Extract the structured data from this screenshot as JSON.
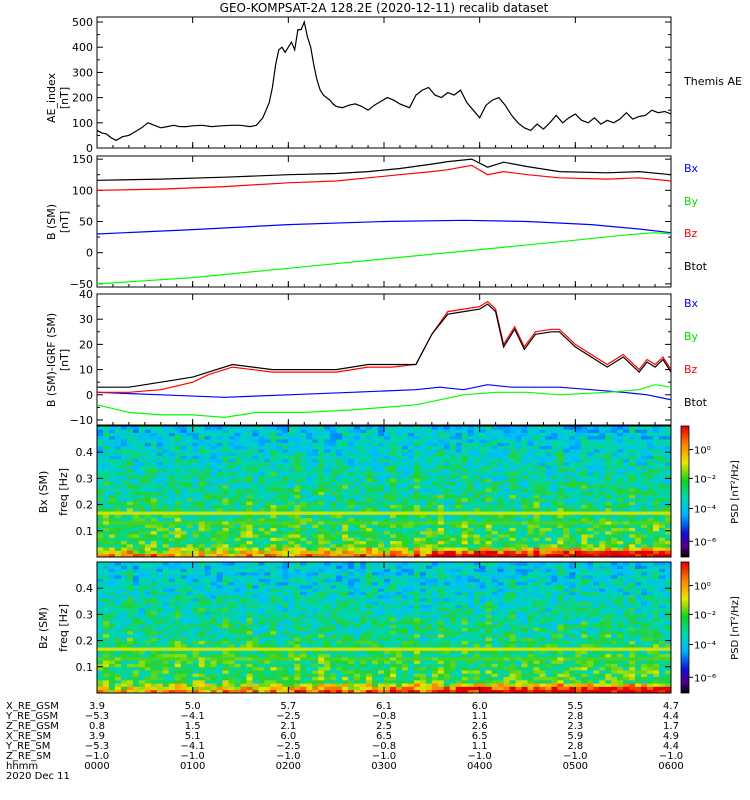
{
  "chart_data": [
    {
      "type": "line",
      "title": "GEO-KOMPSAT-2A 128.2E (2020-12-11) recalib dataset",
      "ylabel": "AE index",
      "yunit": "[nT]",
      "ylim": [
        0,
        520
      ],
      "yticks": [
        0,
        100,
        200,
        300,
        400,
        500
      ],
      "xlim": [
        0,
        360
      ],
      "series": [
        {
          "name": "Themis AE",
          "color": "#000000",
          "x": [
            0,
            3,
            6,
            9,
            12,
            16,
            20,
            24,
            28,
            32,
            36,
            40,
            44,
            48,
            52,
            56,
            60,
            66,
            72,
            78,
            84,
            90,
            96,
            100,
            104,
            108,
            110,
            112,
            114,
            116,
            118,
            120,
            122,
            124,
            126,
            128,
            130,
            132,
            134,
            136,
            138,
            140,
            142,
            144,
            146,
            148,
            150,
            154,
            158,
            162,
            166,
            170,
            174,
            178,
            182,
            186,
            190,
            196,
            200,
            204,
            208,
            212,
            216,
            220,
            224,
            228,
            232,
            236,
            240,
            244,
            248,
            252,
            256,
            260,
            264,
            268,
            272,
            276,
            280,
            284,
            288,
            292,
            296,
            300,
            304,
            308,
            312,
            316,
            320,
            324,
            328,
            332,
            336,
            340,
            344,
            348,
            352,
            356,
            360
          ],
          "values": [
            70,
            60,
            55,
            40,
            30,
            45,
            50,
            65,
            80,
            100,
            90,
            80,
            85,
            90,
            85,
            85,
            88,
            90,
            85,
            88,
            90,
            90,
            85,
            90,
            120,
            180,
            240,
            330,
            390,
            400,
            380,
            400,
            420,
            390,
            470,
            470,
            500,
            440,
            400,
            330,
            270,
            230,
            210,
            200,
            190,
            175,
            165,
            160,
            170,
            175,
            165,
            150,
            170,
            185,
            200,
            190,
            175,
            160,
            210,
            230,
            240,
            210,
            200,
            220,
            210,
            230,
            180,
            150,
            120,
            170,
            190,
            200,
            170,
            130,
            100,
            80,
            70,
            95,
            75,
            100,
            130,
            100,
            120,
            135,
            110,
            100,
            120,
            95,
            110,
            100,
            115,
            140,
            115,
            125,
            130,
            150,
            140,
            145,
            135
          ]
        }
      ]
    },
    {
      "type": "line",
      "ylabel": "B (SM)",
      "yunit": "[nT]",
      "ylim": [
        -55,
        155
      ],
      "yticks": [
        -50,
        0,
        50,
        100,
        150
      ],
      "xlim": [
        0,
        360
      ],
      "series": [
        {
          "name": "Bx",
          "color": "#0000ff",
          "x": [
            0,
            60,
            120,
            180,
            230,
            270,
            310,
            340,
            360
          ],
          "values": [
            30,
            37,
            45,
            50,
            52,
            50,
            45,
            38,
            32
          ]
        },
        {
          "name": "By",
          "color": "#00ff00",
          "x": [
            0,
            60,
            120,
            180,
            240,
            300,
            330,
            350,
            360
          ],
          "values": [
            -50,
            -40,
            -25,
            -10,
            5,
            20,
            28,
            32,
            30
          ]
        },
        {
          "name": "Bz",
          "color": "#ff0000",
          "x": [
            0,
            40,
            80,
            120,
            150,
            170,
            190,
            210,
            220,
            235,
            245,
            255,
            270,
            290,
            320,
            340,
            360
          ],
          "values": [
            100,
            102,
            106,
            112,
            115,
            120,
            125,
            130,
            133,
            140,
            125,
            130,
            125,
            120,
            118,
            120,
            115
          ]
        },
        {
          "name": "Btot",
          "color": "#000000",
          "x": [
            0,
            40,
            80,
            120,
            150,
            170,
            190,
            210,
            220,
            235,
            245,
            255,
            270,
            290,
            320,
            340,
            360
          ],
          "values": [
            116,
            118,
            121,
            125,
            127,
            130,
            135,
            142,
            146,
            150,
            137,
            145,
            138,
            130,
            128,
            130,
            125
          ]
        }
      ]
    },
    {
      "type": "line",
      "ylabel": "B (SM)-IGRF (SM)",
      "yunit": "[nT]",
      "ylim": [
        -12,
        40
      ],
      "yticks": [
        -10,
        0,
        10,
        20,
        30,
        40
      ],
      "xlim": [
        0,
        360
      ],
      "series": [
        {
          "name": "Bx",
          "color": "#0000ff",
          "x": [
            0,
            40,
            80,
            120,
            160,
            200,
            215,
            230,
            245,
            260,
            275,
            290,
            310,
            330,
            345,
            360
          ],
          "values": [
            1,
            0,
            -1,
            0,
            1,
            2,
            3,
            2,
            4,
            3,
            3,
            3,
            2,
            1,
            0,
            -2
          ]
        },
        {
          "name": "By",
          "color": "#00ff00",
          "x": [
            0,
            20,
            40,
            60,
            80,
            100,
            130,
            160,
            200,
            230,
            250,
            270,
            290,
            320,
            340,
            350,
            360
          ],
          "values": [
            -4,
            -7,
            -8,
            -8,
            -9,
            -7,
            -7,
            -6,
            -4,
            0,
            1,
            1,
            0,
            1,
            2,
            4,
            3
          ]
        },
        {
          "name": "Bz",
          "color": "#ff0000",
          "x": [
            0,
            20,
            40,
            60,
            70,
            85,
            110,
            130,
            150,
            170,
            185,
            200,
            210,
            220,
            230,
            240,
            245,
            250,
            255,
            262,
            268,
            275,
            285,
            290,
            300,
            310,
            320,
            330,
            340,
            345,
            350,
            355,
            360
          ],
          "values": [
            1,
            1,
            2,
            5,
            8,
            11,
            9,
            9,
            9,
            11,
            11,
            12,
            24,
            33,
            34,
            35,
            37,
            34,
            20,
            27,
            19,
            25,
            26,
            26,
            20,
            16,
            12,
            16,
            10,
            14,
            12,
            15,
            10
          ]
        },
        {
          "name": "Btot",
          "color": "#000000",
          "x": [
            0,
            20,
            40,
            60,
            70,
            85,
            110,
            130,
            150,
            170,
            185,
            200,
            210,
            220,
            230,
            240,
            245,
            250,
            255,
            262,
            268,
            275,
            285,
            290,
            300,
            310,
            320,
            330,
            340,
            345,
            350,
            355,
            360
          ],
          "values": [
            3,
            3,
            5,
            7,
            9,
            12,
            10,
            10,
            10,
            12,
            12,
            12,
            24,
            32,
            33,
            34,
            36,
            33,
            19,
            26,
            18,
            24,
            25,
            25,
            19,
            15,
            11,
            15,
            9,
            13,
            11,
            14,
            9
          ]
        }
      ]
    },
    {
      "type": "heatmap",
      "ylabel": "Bx (SM)",
      "ylabel2": "freq [Hz]",
      "ylim": [
        0,
        0.5
      ],
      "yticks": [
        0.1,
        0.2,
        0.3,
        0.4
      ],
      "colorbar": {
        "label": "PSD [nT²/Hz]",
        "ticks": [
          "10⁰",
          "10⁻²",
          "10⁻⁴",
          "10⁻⁶"
        ]
      }
    },
    {
      "type": "heatmap",
      "ylabel": "Bz (SM)",
      "ylabel2": "freq [Hz]",
      "ylim": [
        0,
        0.5
      ],
      "yticks": [
        0.1,
        0.2,
        0.3,
        0.4
      ],
      "colorbar": {
        "label": "PSD [nT²/Hz]",
        "ticks": [
          "10⁰",
          "10⁻²",
          "10⁻⁴",
          "10⁻⁶"
        ]
      }
    }
  ],
  "header": {
    "title": "GEO-KOMPSAT-2A 128.2E (2020-12-11) recalib dataset"
  },
  "legend": {
    "ae": "Themis AE",
    "p2": [
      "Bx",
      "By",
      "Bz",
      "Btot"
    ],
    "p3": [
      "Bx",
      "By",
      "Bz",
      "Btot"
    ]
  },
  "ylabels": {
    "p1": [
      "AE_index",
      "[nT]"
    ],
    "p2": [
      "B (SM)",
      "[nT]"
    ],
    "p3": [
      "B (SM)-IGRF (SM)",
      "[nT]"
    ],
    "p4": [
      "Bx (SM)",
      "freq [Hz]"
    ],
    "p5": [
      "Bz (SM)",
      "freq [Hz]"
    ]
  },
  "colors": {
    "Bx": "#0000ff",
    "By": "#00ff00",
    "Bz": "#ff0000",
    "Btot": "#000000"
  },
  "ephemeris": {
    "labels": [
      "X_RE_GSM",
      "Y_RE_GSM",
      "Z_RE_GSM",
      "X_RE_SM",
      "Y_RE_SM",
      "Z_RE_SM",
      "hhmm",
      "2020 Dec 11"
    ],
    "columns": [
      [
        "3.9",
        "-5.3",
        "0.8",
        "3.9",
        "-5.3",
        "-1.0",
        "0000"
      ],
      [
        "5.0",
        "-4.1",
        "1.5",
        "5.1",
        "-4.1",
        "-1.0",
        "0100"
      ],
      [
        "5.7",
        "-2.5",
        "2.1",
        "6.0",
        "-2.5",
        "-1.0",
        "0200"
      ],
      [
        "6.1",
        "-0.8",
        "2.5",
        "6.5",
        "-0.8",
        "-1.0",
        "0300"
      ],
      [
        "6.0",
        "1.1",
        "2.6",
        "6.5",
        "1.1",
        "-1.0",
        "0400"
      ],
      [
        "5.5",
        "2.8",
        "2.3",
        "5.9",
        "2.8",
        "-1.0",
        "0500"
      ],
      [
        "4.7",
        "4.4",
        "1.7",
        "4.9",
        "4.4",
        "-1.0",
        "0600"
      ]
    ]
  }
}
